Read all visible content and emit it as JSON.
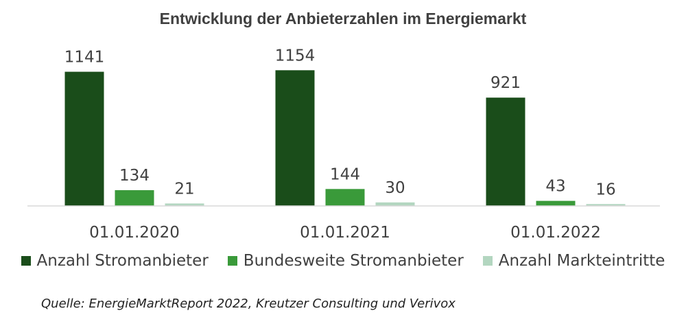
{
  "chart_data": {
    "type": "bar",
    "title": "Entwicklung der Anbieterzahlen im Energiemarkt",
    "categories": [
      "01.01.2020",
      "01.01.2021",
      "01.01.2022"
    ],
    "series": [
      {
        "name": "Anzahl Stromanbieter",
        "values": [
          1141,
          1154,
          921
        ],
        "color": "#1a4d1a"
      },
      {
        "name": "Bundesweite Stromanbieter",
        "values": [
          134,
          144,
          43
        ],
        "color": "#3a9a3a"
      },
      {
        "name": "Anzahl Markteintritte",
        "values": [
          21,
          30,
          16
        ],
        "color": "#b3d6c0"
      }
    ],
    "ylim": [
      0,
      1350
    ],
    "grid": false,
    "legend_position": "bottom",
    "source": "Quelle: EnergieMarktReport 2022, Kreutzer Consulting und Verivox"
  }
}
